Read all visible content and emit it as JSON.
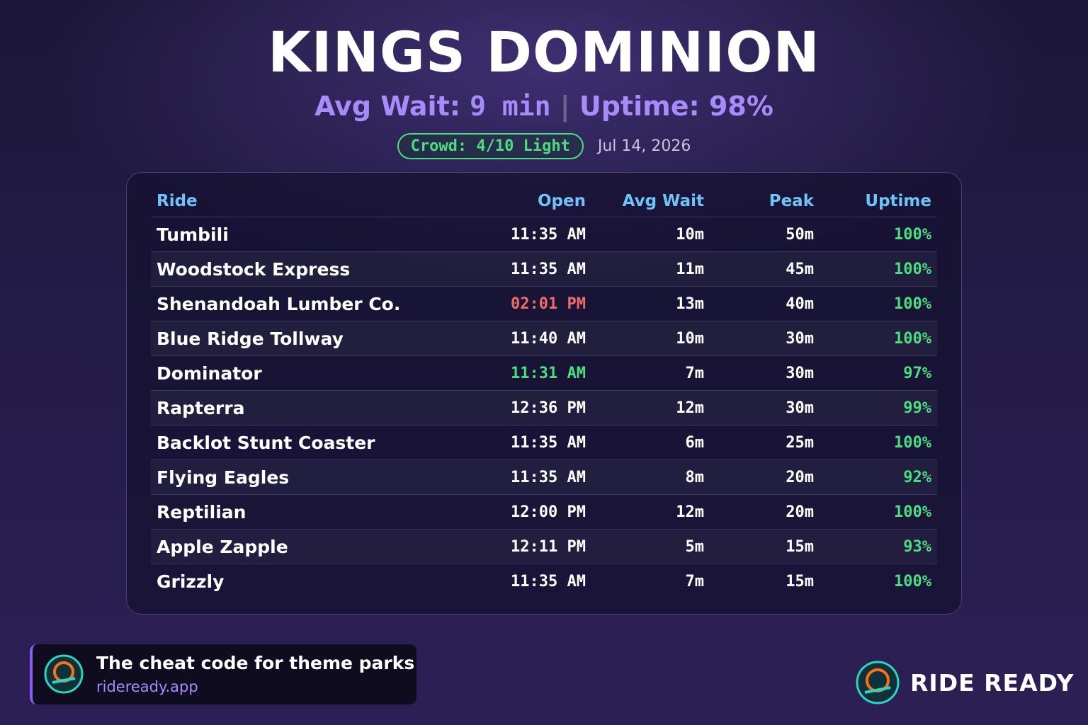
{
  "header": {
    "title": "KINGS DOMINION",
    "avg_wait_label": "Avg Wait:",
    "avg_wait_value": "9 min",
    "separator": "|",
    "uptime": "Uptime: 98%",
    "crowd": "Crowd: 4/10 Light",
    "date": "Jul 14, 2026"
  },
  "table": {
    "columns": [
      "Ride",
      "Open",
      "Avg Wait",
      "Peak",
      "Uptime"
    ],
    "rows": [
      [
        "Tumbili",
        "11:35 AM",
        "10m",
        "50m",
        "100%"
      ],
      [
        "Woodstock Express",
        "11:35 AM",
        "11m",
        "45m",
        "100%"
      ],
      [
        "Shenandoah Lumber Co.",
        "02:01 PM",
        "13m",
        "40m",
        "100%"
      ],
      [
        "Blue Ridge Tollway",
        "11:40 AM",
        "10m",
        "30m",
        "100%"
      ],
      [
        "Dominator",
        "11:31 AM",
        "7m",
        "30m",
        "97%"
      ],
      [
        "Rapterra",
        "12:36 PM",
        "12m",
        "30m",
        "99%"
      ],
      [
        "Backlot Stunt Coaster",
        "11:35 AM",
        "6m",
        "25m",
        "100%"
      ],
      [
        "Flying Eagles",
        "11:35 AM",
        "8m",
        "20m",
        "92%"
      ],
      [
        "Reptilian",
        "12:00 PM",
        "12m",
        "20m",
        "100%"
      ],
      [
        "Apple Zapple",
        "12:11 PM",
        "5m",
        "15m",
        "93%"
      ],
      [
        "Grizzly",
        "11:35 AM",
        "7m",
        "15m",
        "100%"
      ]
    ]
  },
  "footer": {
    "tagline": "The cheat code for theme parks",
    "url": "rideready.app",
    "brand": "RIDE READY"
  }
}
